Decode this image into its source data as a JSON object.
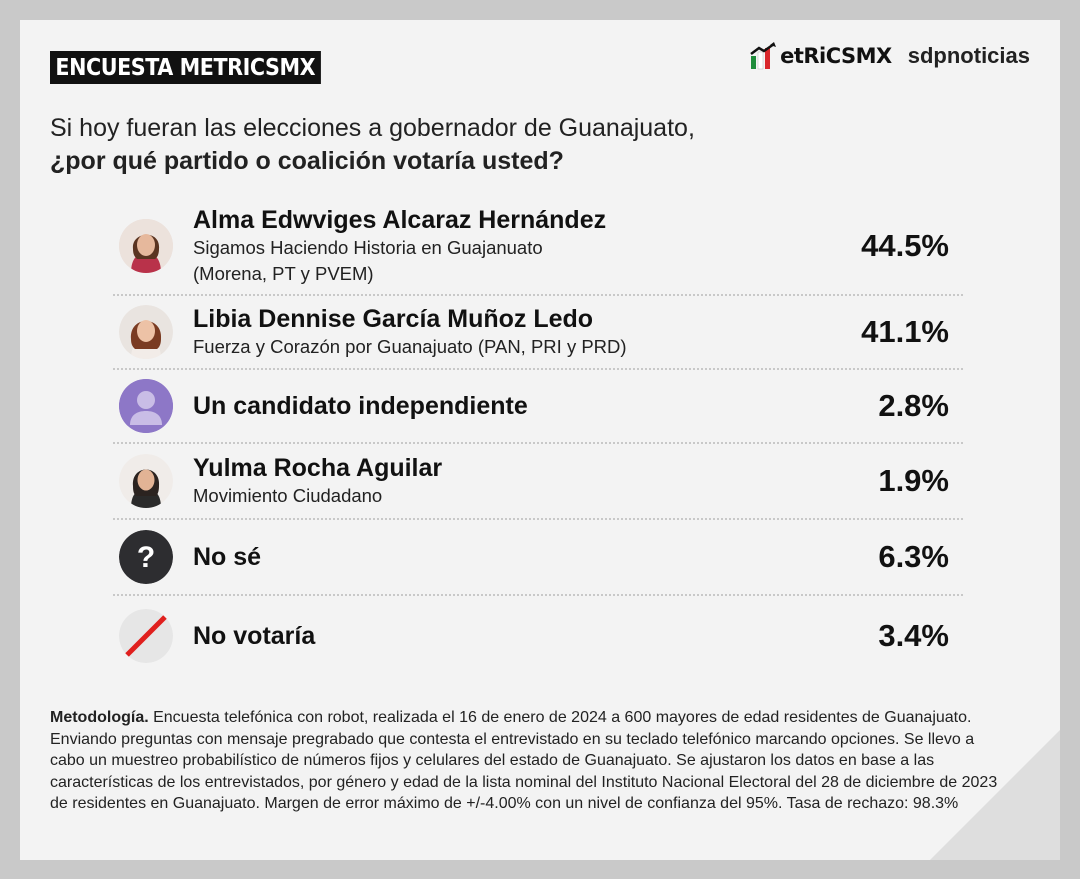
{
  "header": {
    "tag": "ENCUESTA METRICSMX",
    "logo_metrics": "etRiCSMX",
    "logo_sdp": "sdpnoticias"
  },
  "question": {
    "line1": "Si hoy fueran las elecciones a gobernador de Guanajuato,",
    "line2": "¿por qué partido o coalición votaría usted?"
  },
  "chart_data": {
    "type": "table",
    "rows": [
      {
        "name": "Alma Edwviges Alcaraz Hernández",
        "sub1": "Sigamos Haciendo Historia en Guajanuato",
        "sub2": "(Morena, PT y PVEM)",
        "value": 44.5,
        "label": "44.5%",
        "icon": "candidate-photo"
      },
      {
        "name": "Libia Dennise García Muñoz Ledo",
        "sub1": "Fuerza y Corazón por Guanajuato (PAN, PRI y PRD)",
        "sub2": "",
        "value": 41.1,
        "label": "41.1%",
        "icon": "candidate-photo"
      },
      {
        "name": "Un candidato independiente",
        "sub1": "",
        "sub2": "",
        "value": 2.8,
        "label": "2.8%",
        "icon": "person-silhouette-icon"
      },
      {
        "name": "Yulma Rocha Aguilar",
        "sub1": "Movimiento Ciudadano",
        "sub2": "",
        "value": 1.9,
        "label": "1.9%",
        "icon": "candidate-photo"
      },
      {
        "name": "No sé",
        "sub1": "",
        "sub2": "",
        "value": 6.3,
        "label": "6.3%",
        "icon": "question-mark-icon"
      },
      {
        "name": "No votaría",
        "sub1": "",
        "sub2": "",
        "value": 3.4,
        "label": "3.4%",
        "icon": "slash-icon"
      }
    ]
  },
  "methodology": {
    "label": "Metodología.",
    "text": " Encuesta telefónica con robot, realizada el 16 de enero de 2024 a 600 mayores de edad residentes de Guanajuato. Enviando preguntas con mensaje pregrabado que contesta el entrevistado en su teclado telefónico marcando opciones. Se llevo a cabo un muestreo probabilístico de números fijos y celulares del estado de Guanajuato. Se ajustaron los datos en base a las características de los entrevistados, por género y edad de la lista nominal del Instituto Nacional Electoral del 28 de diciembre de 2023 de residentes en Guanajuato. Margen de error máximo de +/-4.00% con un nivel de confianza del 95%. Tasa de rechazo: 98.3%"
  },
  "colors": {
    "background": "#c9c9c9",
    "card": "#f3f3f3",
    "text": "#111111",
    "independent_icon": "#8d77c7",
    "question_icon": "#2d2d30",
    "slash_red": "#e0201e",
    "logo_green": "#1e8c3a",
    "logo_red": "#d9262b"
  }
}
